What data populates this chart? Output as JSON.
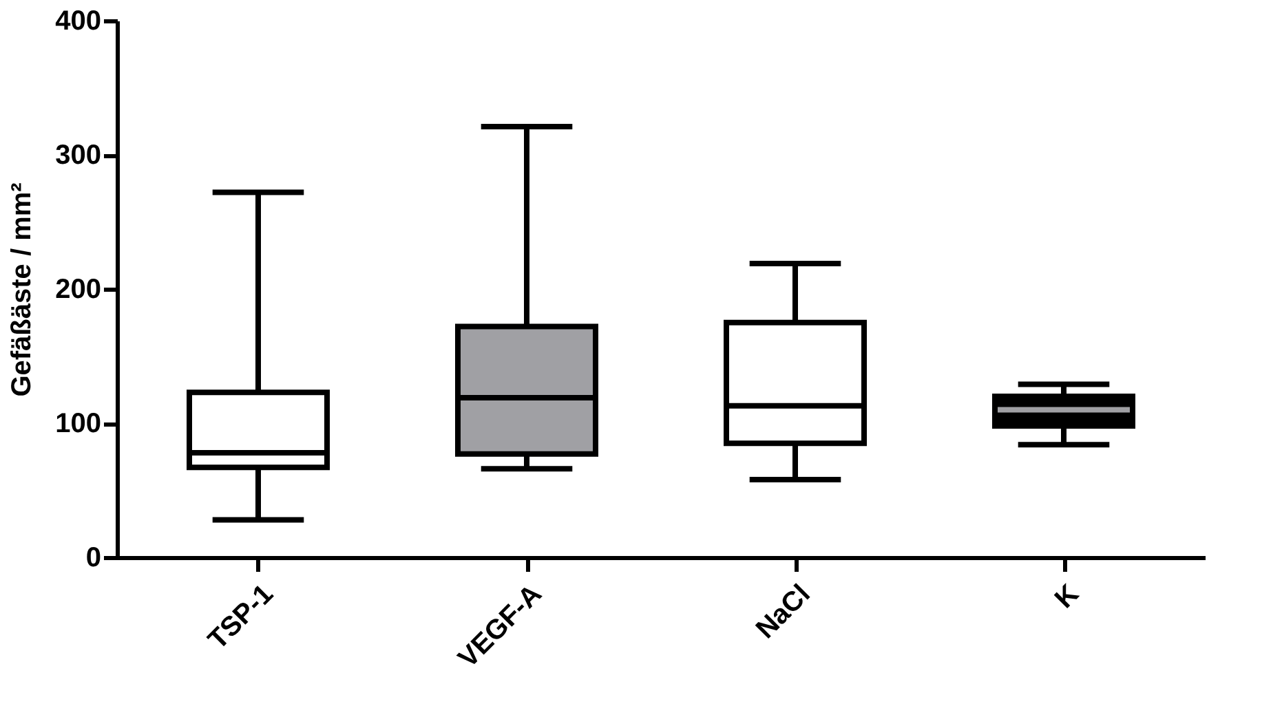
{
  "chart_data": {
    "type": "box",
    "ylabel": "Gefäßäste / mm²",
    "categories": [
      "TSP-1",
      "VEGF-A",
      "NaCl",
      "K"
    ],
    "boxes": [
      {
        "low": 28,
        "q1": 67,
        "median": 78,
        "q3": 123,
        "high": 272
      },
      {
        "low": 66,
        "q1": 77,
        "median": 119,
        "q3": 172,
        "high": 321
      },
      {
        "low": 58,
        "q1": 85,
        "median": 113,
        "q3": 175,
        "high": 219
      },
      {
        "low": 84,
        "q1": 98,
        "median": 110,
        "q3": 120,
        "high": 129
      }
    ],
    "colors": [
      "#ffffff",
      "#a0a0a4",
      "#ffffff",
      "#000000"
    ],
    "ylim": [
      0,
      400
    ],
    "yticks": [
      0,
      100,
      200,
      300,
      400
    ],
    "grid": false
  }
}
